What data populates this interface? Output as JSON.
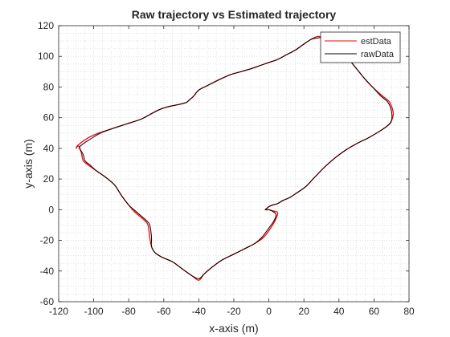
{
  "chart_data": {
    "type": "line",
    "title": "Raw trajectory vs Estimated trajectory",
    "xlabel": "x-axis (m)",
    "ylabel": "y-axis (m)",
    "xlim": [
      -120,
      80
    ],
    "ylim": [
      -60,
      120
    ],
    "xticks": [
      -120,
      -100,
      -80,
      -60,
      -40,
      -20,
      0,
      20,
      40,
      60,
      80
    ],
    "yticks": [
      -60,
      -40,
      -20,
      0,
      20,
      40,
      60,
      80,
      100,
      120
    ],
    "grid": "minor-dotted",
    "legend_position": "top-right",
    "series": [
      {
        "name": "estData",
        "color": "#ff0000",
        "x": [
          0,
          3,
          5,
          4,
          1,
          -3,
          -8,
          -13,
          -20,
          -27,
          -33,
          -37,
          -40,
          -44,
          -49,
          -55,
          -61,
          -65,
          -67,
          -68,
          -69,
          -71,
          -74,
          -77,
          -80,
          -84,
          -88,
          -93,
          -98,
          -103,
          -106,
          -107,
          -108,
          -109,
          -110,
          -108,
          -103,
          -97,
          -89,
          -81,
          -73,
          -68,
          -63,
          -58,
          -54,
          -50,
          -47,
          -45,
          -43,
          -40,
          -35,
          -28,
          -22,
          -16,
          -10,
          -5,
          0,
          5,
          10,
          15,
          20,
          24,
          28,
          31,
          35,
          40,
          45,
          50,
          55,
          60,
          65,
          69,
          71,
          70,
          68,
          63,
          57,
          50,
          44,
          38,
          32,
          26,
          21,
          16,
          12,
          8,
          5,
          2,
          0,
          -1,
          -2,
          0
        ],
        "y": [
          0,
          -1,
          -2,
          -6,
          -12,
          -18,
          -22,
          -25,
          -29,
          -33,
          -38,
          -42,
          -46,
          -43,
          -39,
          -34,
          -31,
          -28,
          -24,
          -18,
          -10,
          -7,
          -4,
          -1,
          3,
          9,
          16,
          21,
          25,
          29,
          32,
          37,
          40,
          42,
          40,
          43,
          47,
          50,
          53,
          56,
          59,
          62,
          65,
          67,
          68,
          69,
          70,
          72,
          74,
          78,
          81,
          85,
          88,
          90,
          92,
          94,
          96,
          98,
          101,
          104,
          108,
          111,
          113,
          112,
          110,
          106,
          99,
          92,
          85,
          79,
          74,
          70,
          63,
          58,
          55,
          51,
          47,
          43,
          39,
          34,
          28,
          21,
          15,
          11,
          8,
          6,
          4,
          3,
          2,
          1,
          0,
          0
        ]
      },
      {
        "name": "rawData",
        "color": "#000000",
        "x": [
          0,
          2,
          4,
          3,
          0,
          -4,
          -8,
          -13,
          -20,
          -27,
          -33,
          -37,
          -40,
          -44,
          -49,
          -55,
          -61,
          -65,
          -67,
          -67,
          -68,
          -70,
          -73,
          -76,
          -80,
          -84,
          -88,
          -93,
          -98,
          -102,
          -105,
          -106,
          -107,
          -108,
          -108,
          -106,
          -102,
          -96,
          -89,
          -81,
          -73,
          -68,
          -63,
          -58,
          -54,
          -50,
          -47,
          -45,
          -43,
          -40,
          -35,
          -28,
          -22,
          -16,
          -10,
          -5,
          0,
          5,
          10,
          15,
          20,
          24,
          28,
          31,
          35,
          40,
          45,
          50,
          55,
          60,
          64,
          68,
          70,
          70,
          68,
          63,
          57,
          50,
          44,
          38,
          32,
          26,
          21,
          16,
          12,
          8,
          5,
          2,
          0,
          -1,
          -2,
          0
        ],
        "y": [
          0,
          -1,
          -3,
          -7,
          -12,
          -18,
          -22,
          -25,
          -29,
          -33,
          -38,
          -42,
          -45,
          -43,
          -39,
          -34,
          -31,
          -28,
          -24,
          -18,
          -10,
          -7,
          -4,
          -1,
          3,
          9,
          16,
          21,
          25,
          29,
          32,
          36,
          38,
          40,
          41,
          43,
          46,
          50,
          53,
          56,
          59,
          62,
          65,
          67,
          68,
          69,
          70,
          72,
          74,
          78,
          81,
          85,
          88,
          90,
          92,
          94,
          96,
          98,
          101,
          104,
          108,
          111,
          112,
          112,
          110,
          106,
          99,
          92,
          85,
          79,
          74,
          70,
          64,
          58,
          55,
          51,
          47,
          43,
          39,
          34,
          28,
          21,
          15,
          11,
          8,
          6,
          4,
          3,
          2,
          1,
          0,
          0
        ]
      }
    ]
  }
}
